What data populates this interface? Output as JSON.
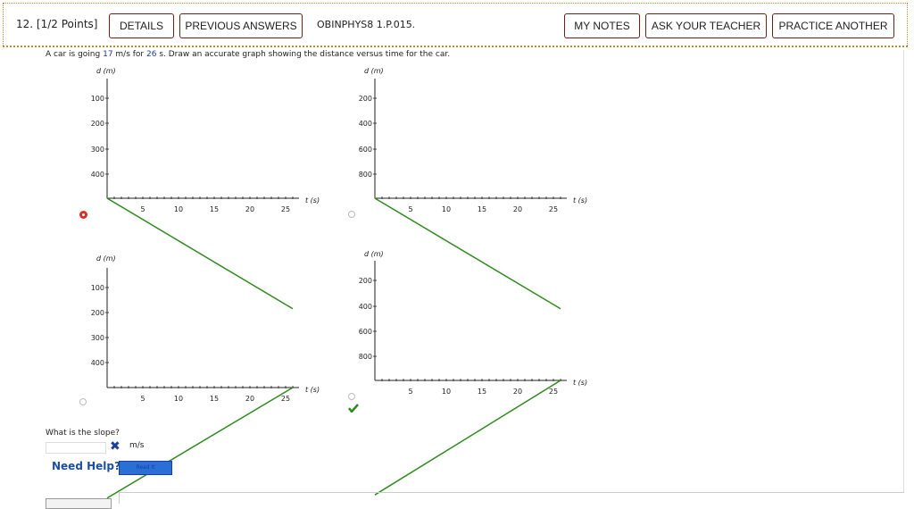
{
  "header": {
    "question_number": "12.",
    "points": "[1/2 Points]",
    "details": "DETAILS",
    "previous_answers": "PREVIOUS ANSWERS",
    "source": "OBINPHYS8 1.P.015.",
    "my_notes": "MY NOTES",
    "ask_teacher": "ASK YOUR TEACHER",
    "practice_another": "PRACTICE ANOTHER",
    "border_color": "#c08a2e",
    "button_border_color": "#6a1f1a"
  },
  "prompt": {
    "text_before": "A car is going ",
    "speed": "17",
    "text_mid": " m/s for ",
    "time": "26",
    "text_after": " s. Draw an accurate graph showing the distance versus time for the car."
  },
  "graphs": [
    {
      "id": "A",
      "selected": true,
      "ylabel": "d (m)",
      "xlabel": "t (s)",
      "x_ticks": [
        "5",
        "10",
        "15",
        "20",
        "25"
      ],
      "y_ticks": [
        "100",
        "200",
        "300",
        "400"
      ]
    },
    {
      "id": "B",
      "selected": false,
      "ylabel": "d (m)",
      "xlabel": "t (s)",
      "x_ticks": [
        "5",
        "10",
        "15",
        "20",
        "25"
      ],
      "y_ticks": [
        "200",
        "400",
        "600",
        "800"
      ]
    },
    {
      "id": "C",
      "selected": false,
      "ylabel": "d (m)",
      "xlabel": "t (s)",
      "x_ticks": [
        "5",
        "10",
        "15",
        "20",
        "25"
      ],
      "y_ticks": [
        "100",
        "200",
        "300",
        "400"
      ]
    },
    {
      "id": "D",
      "selected": false,
      "correct": true,
      "ylabel": "d (m)",
      "xlabel": "t (s)",
      "x_ticks": [
        "5",
        "10",
        "15",
        "20",
        "25"
      ],
      "y_ticks": [
        "200",
        "400",
        "600",
        "800"
      ]
    }
  ],
  "chart_data": [
    {
      "type": "line",
      "series": [
        {
          "x": [
            0,
            26
          ],
          "y": [
            0,
            442
          ]
        }
      ],
      "xlim": [
        0,
        26
      ],
      "ylim": [
        0,
        450
      ],
      "xlabel": "t (s)",
      "ylabel": "d (m)",
      "line_color": "#2e8b1e"
    },
    {
      "type": "line",
      "series": [
        {
          "x": [
            0,
            26
          ],
          "y": [
            0,
            884
          ]
        }
      ],
      "xlim": [
        0,
        26
      ],
      "ylim": [
        0,
        900
      ],
      "xlabel": "t (s)",
      "ylabel": "d (m)",
      "line_color": "#2e8b1e"
    },
    {
      "type": "line",
      "series": [
        {
          "x": [
            0,
            26
          ],
          "y": [
            442,
            0
          ]
        }
      ],
      "xlim": [
        0,
        26
      ],
      "ylim": [
        0,
        450
      ],
      "xlabel": "t (s)",
      "ylabel": "d (m)",
      "line_color": "#2e8b1e"
    },
    {
      "type": "line",
      "series": [
        {
          "x": [
            0,
            26
          ],
          "y": [
            884,
            0
          ]
        }
      ],
      "xlim": [
        0,
        26
      ],
      "ylim": [
        0,
        900
      ],
      "xlabel": "t (s)",
      "ylabel": "d (m)",
      "line_color": "#2e8b1e"
    }
  ],
  "slope": {
    "question": "What is the slope?",
    "value": "",
    "status_icon": "x-icon",
    "unit": "m/s"
  },
  "help": {
    "label": "Need Help?",
    "read_it": "Read It"
  },
  "colors": {
    "line": "#2e8b1e",
    "check": "#2e8b1e",
    "selected_radio": "#d93025",
    "accent_blue": "#1a3e9e"
  }
}
